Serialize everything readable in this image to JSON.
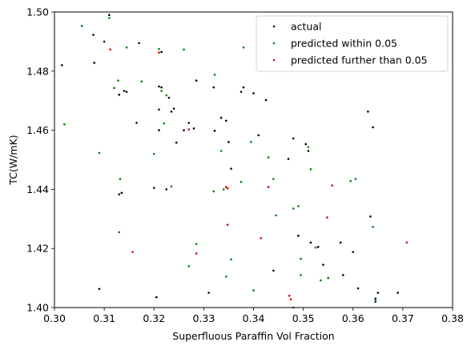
{
  "chart_data": {
    "type": "scatter",
    "title": "",
    "xlabel": "Superfluous Paraffin Vol Fraction",
    "ylabel": "TC(W/mK)",
    "xlim": [
      0.3,
      0.38
    ],
    "ylim": [
      1.4,
      1.5
    ],
    "xticks": [
      0.3,
      0.31,
      0.32,
      0.33,
      0.34,
      0.35,
      0.36,
      0.37,
      0.38
    ],
    "xtick_labels": [
      "0.30",
      "0.31",
      "0.32",
      "0.33",
      "0.34",
      "0.35",
      "0.36",
      "0.37",
      "0.38"
    ],
    "yticks": [
      1.4,
      1.42,
      1.44,
      1.46,
      1.48,
      1.5
    ],
    "ytick_labels": [
      "1.40",
      "1.42",
      "1.44",
      "1.46",
      "1.48",
      "1.50"
    ],
    "grid": false,
    "legend_position": "top-right",
    "series": [
      {
        "name": "actual",
        "color": "#000000",
        "points": [
          [
            0.3015,
            1.482
          ],
          [
            0.3078,
            1.4923
          ],
          [
            0.308,
            1.4828
          ],
          [
            0.309,
            1.4063
          ],
          [
            0.31,
            1.49
          ],
          [
            0.311,
            1.499
          ],
          [
            0.313,
            1.472
          ],
          [
            0.313,
            1.4383
          ],
          [
            0.3135,
            1.4388
          ],
          [
            0.314,
            1.4733
          ],
          [
            0.3145,
            1.473
          ],
          [
            0.3165,
            1.4625
          ],
          [
            0.317,
            1.4895
          ],
          [
            0.32,
            1.4405
          ],
          [
            0.3205,
            1.4035
          ],
          [
            0.321,
            1.46
          ],
          [
            0.321,
            1.467
          ],
          [
            0.321,
            1.4748
          ],
          [
            0.3215,
            1.4745
          ],
          [
            0.3215,
            1.4865
          ],
          [
            0.3225,
            1.44
          ],
          [
            0.323,
            1.471
          ],
          [
            0.3235,
            1.4663
          ],
          [
            0.324,
            1.4673
          ],
          [
            0.3245,
            1.4558
          ],
          [
            0.326,
            1.46
          ],
          [
            0.327,
            1.4625
          ],
          [
            0.328,
            1.4606
          ],
          [
            0.3285,
            1.4768
          ],
          [
            0.331,
            1.405
          ],
          [
            0.332,
            1.4745
          ],
          [
            0.3322,
            1.4598
          ],
          [
            0.3335,
            1.4642
          ],
          [
            0.3345,
            1.4632
          ],
          [
            0.335,
            1.456
          ],
          [
            0.3355,
            1.447
          ],
          [
            0.3375,
            1.473
          ],
          [
            0.338,
            1.4745
          ],
          [
            0.34,
            1.4725
          ],
          [
            0.341,
            1.4583
          ],
          [
            0.3425,
            1.4702
          ],
          [
            0.344,
            1.4125
          ],
          [
            0.347,
            1.4503
          ],
          [
            0.348,
            1.4572
          ],
          [
            0.349,
            1.4243
          ],
          [
            0.3505,
            1.4553
          ],
          [
            0.351,
            1.453
          ],
          [
            0.3515,
            1.422
          ],
          [
            0.353,
            1.4205
          ],
          [
            0.354,
            1.4145
          ],
          [
            0.355,
            1.41
          ],
          [
            0.3575,
            1.422
          ],
          [
            0.358,
            1.411
          ],
          [
            0.36,
            1.4188
          ],
          [
            0.361,
            1.4065
          ],
          [
            0.363,
            1.4663
          ],
          [
            0.3635,
            1.4308
          ],
          [
            0.364,
            1.461
          ],
          [
            0.3645,
            1.402
          ],
          [
            0.3645,
            1.403
          ],
          [
            0.365,
            1.405
          ],
          [
            0.369,
            1.405
          ]
        ]
      },
      {
        "name": "predicted within 0.05",
        "color": "#008000",
        "points": [
          [
            0.302,
            1.462
          ],
          [
            0.3055,
            1.4953
          ],
          [
            0.309,
            1.4523
          ],
          [
            0.311,
            1.498
          ],
          [
            0.312,
            1.4743
          ],
          [
            0.3128,
            1.4768
          ],
          [
            0.313,
            1.4255
          ],
          [
            0.3132,
            1.4435
          ],
          [
            0.3145,
            1.488
          ],
          [
            0.3175,
            1.4765
          ],
          [
            0.32,
            1.452
          ],
          [
            0.321,
            1.4875
          ],
          [
            0.3215,
            1.4733
          ],
          [
            0.322,
            1.4623
          ],
          [
            0.3225,
            1.4718
          ],
          [
            0.3235,
            1.441
          ],
          [
            0.326,
            1.4873
          ],
          [
            0.327,
            1.414
          ],
          [
            0.3285,
            1.4215
          ],
          [
            0.332,
            1.4393
          ],
          [
            0.3322,
            1.4788
          ],
          [
            0.3335,
            1.453
          ],
          [
            0.334,
            1.44
          ],
          [
            0.3345,
            1.4105
          ],
          [
            0.3355,
            1.4163
          ],
          [
            0.3375,
            1.4425
          ],
          [
            0.338,
            1.488
          ],
          [
            0.3395,
            1.456
          ],
          [
            0.34,
            1.4058
          ],
          [
            0.343,
            1.4508
          ],
          [
            0.344,
            1.4435
          ],
          [
            0.3445,
            1.4312
          ],
          [
            0.348,
            1.4335
          ],
          [
            0.349,
            1.4343
          ],
          [
            0.3495,
            1.411
          ],
          [
            0.3495,
            1.4165
          ],
          [
            0.351,
            1.4543
          ],
          [
            0.3515,
            1.4468
          ],
          [
            0.3525,
            1.4203
          ],
          [
            0.3535,
            1.4092
          ],
          [
            0.355,
            1.41
          ],
          [
            0.3595,
            1.4428
          ],
          [
            0.3605,
            1.4435
          ],
          [
            0.364,
            1.4273
          ],
          [
            0.3645,
            1.4023
          ],
          [
            0.348,
            1.4
          ]
        ]
      },
      {
        "name": "predicted further than 0.05",
        "color": "#d00000",
        "points": [
          [
            0.3112,
            1.4873
          ],
          [
            0.3157,
            1.4188
          ],
          [
            0.321,
            1.4863
          ],
          [
            0.327,
            1.4603
          ],
          [
            0.3285,
            1.4183
          ],
          [
            0.3345,
            1.4408
          ],
          [
            0.3348,
            1.4403
          ],
          [
            0.3348,
            1.428
          ],
          [
            0.3415,
            1.4235
          ],
          [
            0.343,
            1.4408
          ],
          [
            0.3472,
            1.404
          ],
          [
            0.3475,
            1.4028
          ],
          [
            0.3548,
            1.4305
          ],
          [
            0.3558,
            1.4413
          ],
          [
            0.3708,
            1.422
          ]
        ]
      }
    ]
  }
}
